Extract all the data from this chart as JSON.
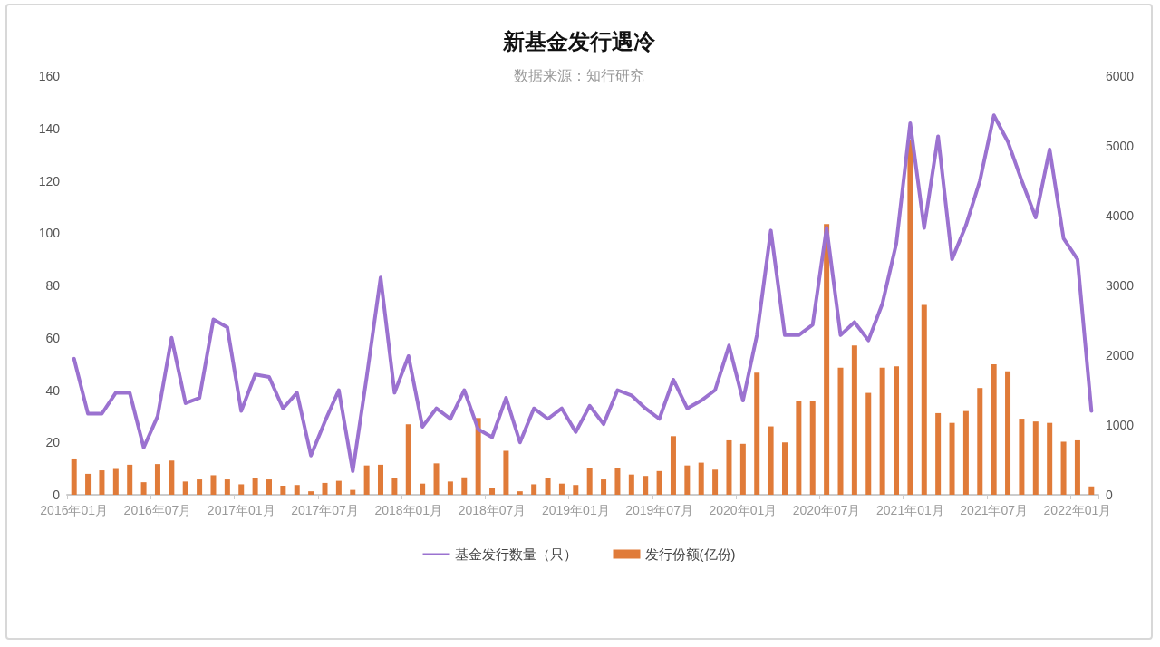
{
  "chart_data": {
    "type": "bar",
    "title": "新基金发行遇冷",
    "subtitle": "数据来源：知行研究",
    "categories": [
      "2016年01月",
      null,
      null,
      null,
      null,
      null,
      "2016年07月",
      null,
      null,
      null,
      null,
      null,
      "2017年01月",
      null,
      null,
      null,
      null,
      null,
      "2017年07月",
      null,
      null,
      null,
      null,
      null,
      "2018年01月",
      null,
      null,
      null,
      null,
      null,
      "2018年07月",
      null,
      null,
      null,
      null,
      null,
      "2019年01月",
      null,
      null,
      null,
      null,
      null,
      "2019年07月",
      null,
      null,
      null,
      null,
      null,
      "2020年01月",
      null,
      null,
      null,
      null,
      null,
      "2020年07月",
      null,
      null,
      null,
      null,
      null,
      "2021年01月",
      null,
      null,
      null,
      null,
      null,
      "2021年07月",
      null,
      null,
      null,
      null,
      null,
      "2022年01月",
      null
    ],
    "series": [
      {
        "name": "基金发行数量（只）",
        "type": "line",
        "color": "#9b72d0",
        "values": [
          52,
          31,
          31,
          39,
          39,
          18,
          30,
          60,
          35,
          37,
          67,
          64,
          32,
          46,
          45,
          33,
          39,
          15,
          28,
          40,
          9,
          45,
          83,
          39,
          53,
          26,
          33,
          29,
          40,
          25,
          22,
          37,
          20,
          33,
          29,
          33,
          24,
          34,
          27,
          40,
          38,
          33,
          29,
          44,
          33,
          36,
          40,
          57,
          36,
          61,
          101,
          61,
          61,
          65,
          102,
          61,
          66,
          59,
          73,
          96,
          142,
          102,
          137,
          90,
          103,
          120,
          145,
          135,
          120,
          106,
          132,
          98,
          90,
          32
        ]
      },
      {
        "name": "发行份额(亿份)",
        "axis": "y2",
        "color": "#e07b39",
        "values": [
          520,
          300,
          350,
          370,
          430,
          180,
          440,
          490,
          190,
          220,
          280,
          220,
          150,
          240,
          220,
          130,
          140,
          50,
          170,
          200,
          70,
          420,
          430,
          240,
          1010,
          160,
          450,
          190,
          250,
          1100,
          100,
          630,
          50,
          150,
          240,
          160,
          140,
          390,
          220,
          390,
          290,
          270,
          340,
          840,
          420,
          460,
          360,
          780,
          730,
          1750,
          980,
          750,
          1350,
          1340,
          3880,
          1820,
          2140,
          1460,
          1820,
          1840,
          5080,
          2720,
          1170,
          1030,
          1200,
          1530,
          1870,
          1770,
          1090,
          1050,
          1030,
          760,
          780,
          120
        ]
      }
    ],
    "ylim": [
      0,
      160
    ],
    "yticks": [
      0,
      20,
      40,
      60,
      80,
      100,
      120,
      140,
      160
    ],
    "y2lim": [
      0,
      6000
    ],
    "y2ticks": [
      0,
      1000,
      2000,
      3000,
      4000,
      5000,
      6000
    ],
    "legend": "bottom",
    "marker": "none",
    "line_style": "solid"
  }
}
